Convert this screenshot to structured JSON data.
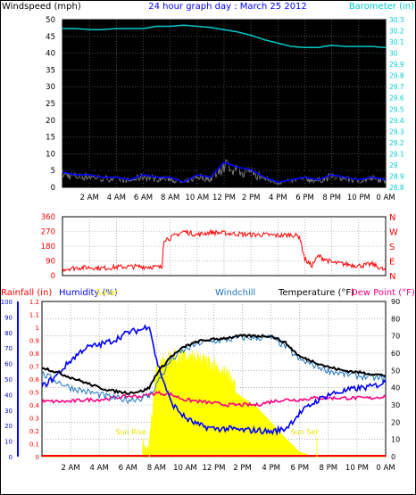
{
  "colors": {
    "background": "#ffffff",
    "plot_bg": "#000000",
    "grid": "#808080",
    "wind": "#000000",
    "gust": "#808080",
    "avg_wind": "#0000ff",
    "barometer": "#00cccc",
    "direction": "#ff0000",
    "rainfall": "#ff0000",
    "humidity": "#0000ff",
    "solar": "#ffff00",
    "windchill": "#1e73be",
    "temperature": "#000000",
    "dewpoint": "#ff0080",
    "title": "#0000ff"
  },
  "x_labels": [
    "2 AM",
    "4 AM",
    "6 AM",
    "8 AM",
    "10 AM",
    "12 PM",
    "2 PM",
    "4 PM",
    "6 PM",
    "8 PM",
    "10 PM",
    "0 AM"
  ],
  "chart_data": [
    {
      "type": "line",
      "title": "24 hour graph day : March 25 2012",
      "ylabel": "Windspeed (mph)",
      "y2label": "Barometer (in)",
      "ylim": [
        0,
        50
      ],
      "y2lim": [
        28.8,
        30.3
      ],
      "yticks": [
        "0",
        "5",
        "10",
        "15",
        "20",
        "25",
        "30",
        "35",
        "40",
        "45",
        "50"
      ],
      "y2ticks": [
        "28.8",
        "28.9",
        "29",
        "29.1",
        "29.2",
        "29.3",
        "29.4",
        "29.5",
        "29.6",
        "29.7",
        "29.8",
        "29.9",
        "30",
        "30.1",
        "30.2",
        "30.3"
      ],
      "x_hours": [
        0,
        1,
        2,
        3,
        4,
        5,
        6,
        7,
        8,
        9,
        10,
        11,
        12,
        13,
        14,
        15,
        16,
        17,
        18,
        19,
        20,
        21,
        22,
        23,
        24
      ],
      "series": [
        {
          "name": "Windspeed",
          "values": [
            6,
            5,
            5,
            4,
            4,
            3,
            5,
            4,
            4,
            2,
            5,
            4,
            10,
            8,
            7,
            4,
            2,
            3,
            4,
            3,
            5,
            4,
            3,
            4,
            3
          ]
        },
        {
          "name": "Barometer",
          "values": [
            30.22,
            30.22,
            30.21,
            30.21,
            30.22,
            30.22,
            30.22,
            30.24,
            30.24,
            30.25,
            30.24,
            30.23,
            30.21,
            30.19,
            30.16,
            30.12,
            30.09,
            30.06,
            30.05,
            30.05,
            30.07,
            30.06,
            30.06,
            30.06,
            30.05
          ]
        }
      ]
    },
    {
      "type": "line",
      "ylim": [
        0,
        360
      ],
      "yticks": [
        "0",
        "90",
        "180",
        "270",
        "360"
      ],
      "compass": [
        "N",
        "W",
        "S",
        "E",
        "N"
      ],
      "x_hours": [
        0,
        1,
        2,
        3,
        4,
        5,
        6,
        7,
        7.4,
        7.5,
        8,
        9,
        10,
        11,
        12,
        13,
        14,
        15,
        16,
        17,
        17.6,
        18,
        18.5,
        19,
        20,
        21,
        22,
        23,
        24
      ],
      "series": [
        {
          "name": "Wind direction",
          "values": [
            40,
            48,
            50,
            45,
            52,
            55,
            55,
            52,
            50,
            220,
            230,
            270,
            250,
            265,
            260,
            255,
            250,
            250,
            245,
            250,
            240,
            100,
            60,
            120,
            80,
            70,
            60,
            70,
            30
          ]
        }
      ]
    },
    {
      "type": "line",
      "ylabel": "Rainfall (in)",
      "series_labels": [
        "Humidity (%)",
        "Solar",
        "Windchill",
        "Temperature (°F)",
        "Dew Point (°F)"
      ],
      "annotations": [
        "Sun Rise",
        "Sun Set"
      ],
      "ylim": [
        0,
        1.2
      ],
      "y2lim": [
        0,
        100
      ],
      "y3lim": [
        0,
        90
      ],
      "yticks": [
        "0",
        "0.1",
        "0.2",
        "0.3",
        "0.4",
        "0.5",
        "0.6",
        "0.7",
        "0.8",
        "0.9",
        "1",
        "1.1",
        "1.2"
      ],
      "y2ticks": [
        "0",
        "10",
        "20",
        "30",
        "40",
        "50",
        "60",
        "70",
        "80",
        "90",
        "100"
      ],
      "y3ticks": [
        "0",
        "10",
        "20",
        "30",
        "40",
        "50",
        "60",
        "70",
        "80",
        "90"
      ],
      "x_hours": [
        0,
        1,
        2,
        3,
        4,
        5,
        6,
        7,
        7.5,
        8,
        9,
        10,
        11,
        12,
        13,
        14,
        15,
        16,
        17,
        18,
        19,
        20,
        21,
        22,
        23,
        24
      ],
      "series": [
        {
          "name": "Temperature",
          "values": [
            52,
            49,
            46,
            43,
            40,
            38,
            37,
            38,
            40,
            48,
            58,
            64,
            67,
            68,
            69,
            70,
            70,
            70,
            66,
            58,
            55,
            52,
            50,
            49,
            48,
            47
          ]
        },
        {
          "name": "Windchill",
          "values": [
            48,
            44,
            40,
            38,
            36,
            34,
            33,
            34,
            35,
            42,
            56,
            62,
            66,
            67,
            68,
            69,
            69,
            69,
            64,
            56,
            53,
            50,
            48,
            47,
            46,
            45
          ]
        },
        {
          "name": "Dew Point",
          "values": [
            32,
            32,
            32,
            33,
            33,
            34,
            35,
            35,
            36,
            37,
            36,
            33,
            32,
            31,
            30,
            30,
            30,
            32,
            33,
            33,
            34,
            34,
            34,
            34,
            34,
            35
          ]
        },
        {
          "name": "Humidity",
          "values": [
            45,
            52,
            62,
            70,
            72,
            75,
            80,
            82,
            85,
            62,
            35,
            25,
            20,
            18,
            18,
            17,
            17,
            16,
            18,
            28,
            35,
            40,
            42,
            44,
            45,
            48
          ]
        },
        {
          "name": "Solar",
          "values": [
            0,
            0,
            0,
            0,
            0,
            0,
            0,
            0,
            2,
            52,
            58,
            58,
            56,
            54,
            45,
            38,
            32,
            22,
            12,
            3,
            0,
            0,
            0,
            0,
            0,
            0
          ]
        },
        {
          "name": "Rainfall",
          "values": [
            0,
            0,
            0,
            0,
            0,
            0,
            0,
            0,
            0,
            0,
            0,
            0,
            0,
            0,
            0,
            0,
            0,
            0,
            0,
            0,
            0,
            0,
            0,
            0,
            0,
            0
          ]
        }
      ]
    }
  ]
}
